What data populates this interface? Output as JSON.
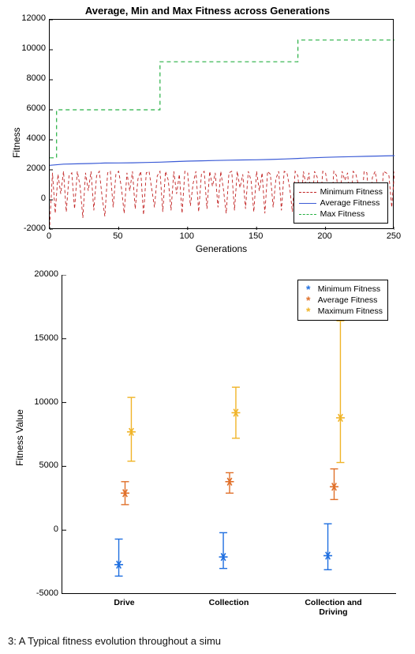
{
  "figure_width": 526,
  "figure_height": 828,
  "top_chart": {
    "type": "line",
    "title": "Average, Min and Max Fitness across Generations",
    "title_fontsize": 13,
    "xlabel": "Generations",
    "ylabel": "Fitness",
    "label_fontsize": 12,
    "xlim": [
      0,
      250
    ],
    "ylim": [
      -2000,
      12000
    ],
    "xtick_step": 50,
    "ytick_step": 2000,
    "background_color": "#ffffff",
    "axis_color": "#000000",
    "series": {
      "minimum": {
        "label": "Minimum Fitness",
        "color": "#c02020",
        "dash": "4,3",
        "width": 0.9,
        "x": [
          0,
          2,
          4,
          6,
          8,
          10,
          12,
          14,
          16,
          18,
          20,
          22,
          24,
          26,
          28,
          30,
          32,
          34,
          36,
          38,
          40,
          42,
          44,
          46,
          48,
          50,
          52,
          54,
          56,
          58,
          60,
          62,
          64,
          66,
          68,
          70,
          72,
          74,
          76,
          78,
          80,
          82,
          84,
          86,
          88,
          90,
          92,
          94,
          96,
          98,
          100,
          102,
          104,
          106,
          108,
          110,
          112,
          114,
          116,
          118,
          120,
          122,
          124,
          126,
          128,
          130,
          132,
          134,
          136,
          138,
          140,
          142,
          144,
          146,
          148,
          150,
          152,
          154,
          156,
          158,
          160,
          162,
          164,
          166,
          168,
          170,
          172,
          174,
          176,
          178,
          180,
          182,
          184,
          186,
          188,
          190,
          192,
          194,
          196,
          198,
          200,
          202,
          204,
          206,
          208,
          210,
          212,
          214,
          216,
          218,
          220,
          222,
          224,
          226,
          228,
          230,
          232,
          234,
          236,
          238,
          240,
          242,
          244,
          246,
          248,
          250
        ],
        "y": [
          -1700,
          1800,
          -900,
          1700,
          400,
          1900,
          -800,
          1600,
          1800,
          -600,
          1900,
          900,
          -1200,
          1800,
          600,
          1900,
          -700,
          1600,
          1900,
          200,
          -1100,
          1800,
          1900,
          -500,
          1700,
          1900,
          800,
          -900,
          1800,
          600,
          1900,
          -600,
          1400,
          1900,
          -1000,
          1800,
          1900,
          700,
          -500,
          1600,
          1900,
          -800,
          1900,
          1300,
          -700,
          1900,
          400,
          1700,
          -900,
          1900,
          1800,
          -400,
          1100,
          1900,
          -800,
          1700,
          1900,
          -600,
          1900,
          900,
          1800,
          -500,
          1900,
          700,
          -900,
          1800,
          1900,
          -700,
          1900,
          800,
          1700,
          -600,
          1900,
          1300,
          -800,
          1900,
          600,
          1800,
          -900,
          1900,
          1700,
          -500,
          1400,
          1900,
          -700,
          1900,
          1800,
          800,
          -800,
          1900,
          1600,
          -600,
          1900,
          900,
          1800,
          -700,
          1900,
          1500,
          -500,
          1900,
          1800,
          700,
          -800,
          1900,
          1600,
          -600,
          1900,
          1300,
          1800,
          -700,
          1900,
          1700,
          900,
          -500,
          1900,
          1800,
          -600,
          1500,
          1900,
          800,
          -700,
          1900,
          1800,
          1600,
          -500,
          1900
        ]
      },
      "average": {
        "label": "Average Fitness",
        "color": "#3b5bd6",
        "dash": "",
        "width": 1.2,
        "x": [
          0,
          10,
          20,
          30,
          40,
          50,
          60,
          70,
          80,
          90,
          100,
          110,
          120,
          130,
          140,
          150,
          160,
          170,
          180,
          190,
          200,
          210,
          220,
          230,
          240,
          250
        ],
        "y": [
          2300,
          2380,
          2400,
          2420,
          2450,
          2460,
          2470,
          2490,
          2510,
          2550,
          2580,
          2600,
          2620,
          2640,
          2660,
          2670,
          2690,
          2720,
          2760,
          2800,
          2830,
          2860,
          2880,
          2900,
          2920,
          2940
        ]
      },
      "max": {
        "label": "Max Fitness",
        "color": "#27b043",
        "dash": "5,4",
        "width": 1.2,
        "x": [
          0,
          5,
          5,
          80,
          80,
          180,
          180,
          250
        ],
        "y": [
          2800,
          2800,
          6000,
          6000,
          9200,
          9200,
          10650,
          10650
        ]
      }
    },
    "legend_position": "bottom-right-inside"
  },
  "bottom_chart": {
    "type": "errorbar",
    "xlabel_categories": [
      "Drive",
      "Collection",
      "Collection and Driving"
    ],
    "ylabel": "Fitness Value",
    "label_fontsize": 12,
    "category_font_weight": "bold",
    "xlim": [
      0.4,
      3.6
    ],
    "ylim": [
      -5000,
      20000
    ],
    "ytick_step": 5000,
    "background_color": "#ffffff",
    "axis_color": "#000000",
    "marker": "asterisk",
    "marker_size": 11,
    "error_cap_width": 10,
    "error_line_width": 1.4,
    "series": {
      "minimum": {
        "label": "Minimum Fitness",
        "color": "#1f6fe0",
        "x": [
          1,
          2,
          3
        ],
        "y": [
          -2700,
          -2100,
          -2000
        ],
        "err_low": [
          900,
          900,
          1100
        ],
        "err_high": [
          2000,
          1900,
          2500
        ]
      },
      "average": {
        "label": "Average Fitness",
        "color": "#e0702a",
        "x": [
          1,
          2,
          3
        ],
        "y": [
          2900,
          3800,
          3400
        ],
        "err_low": [
          900,
          900,
          1000
        ],
        "err_high": [
          900,
          700,
          1400
        ]
      },
      "maximum": {
        "label": "Maximum  Fitness",
        "color": "#f0b428",
        "x": [
          1,
          2,
          3
        ],
        "y": [
          7700,
          9200,
          8800
        ],
        "err_low": [
          2300,
          2000,
          3500
        ],
        "err_high": [
          2700,
          2000,
          7600
        ]
      }
    },
    "legend_position": "top-right-inside"
  },
  "caption": "3: A Typical fitness evolution throughout a simu"
}
